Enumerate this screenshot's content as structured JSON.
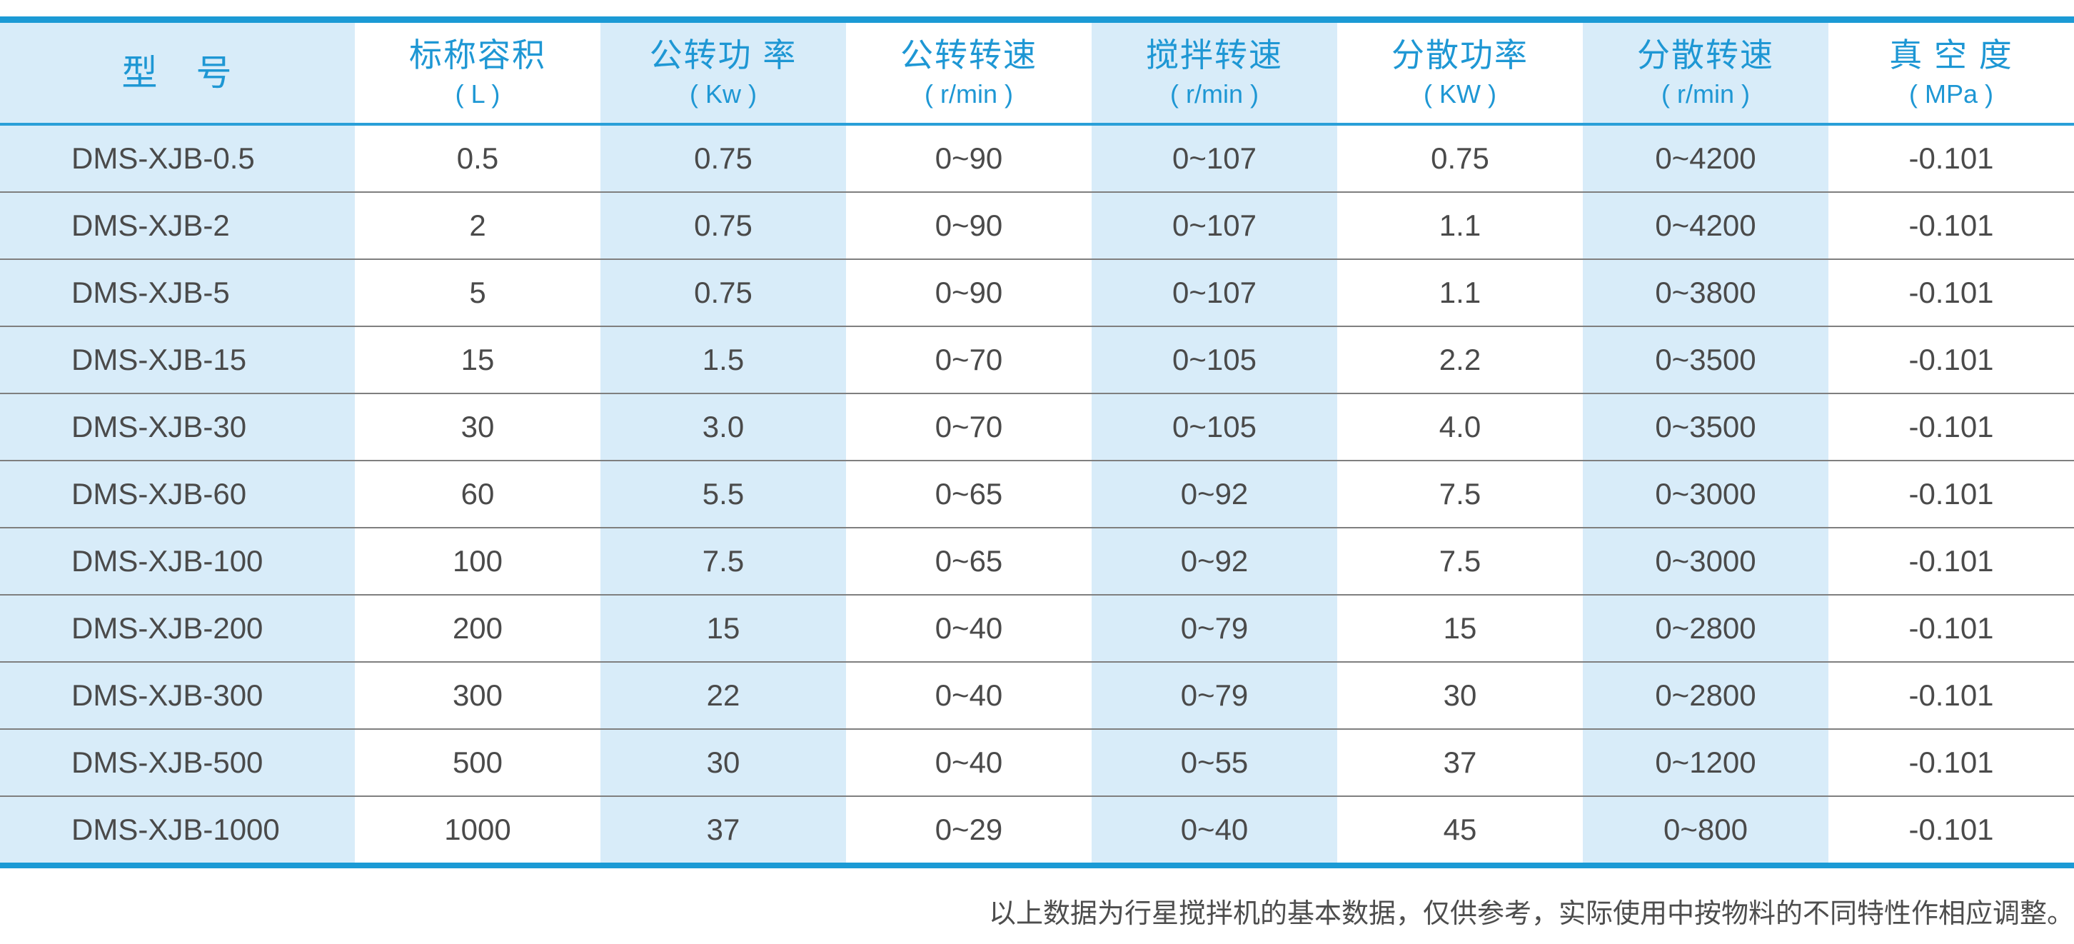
{
  "colors": {
    "accent_blue": "#1b9ad5",
    "header_separator_blue": "#2a9fd8",
    "header_text_blue": "#1e97d4",
    "band_light_blue": "#d8ecf9",
    "body_text_gray": "#4a4a4a",
    "row_separator_gray": "#7f7f7f",
    "footnote_gray": "#4d4d4d",
    "page_background": "#ffffff"
  },
  "table": {
    "columns": [
      {
        "title": "型　号",
        "unit": ""
      },
      {
        "title": "标称容积",
        "unit": "( L )"
      },
      {
        "title": "公转功 率",
        "unit": "( Kw )"
      },
      {
        "title": "公转转速",
        "unit": "( r/min )"
      },
      {
        "title": "搅拌转速",
        "unit": "( r/min )"
      },
      {
        "title": "分散功率",
        "unit": "( KW )"
      },
      {
        "title": "分散转速",
        "unit": "( r/min )"
      },
      {
        "title": "真 空 度",
        "unit": "( MPa )"
      }
    ],
    "rows": [
      [
        "DMS-XJB-0.5",
        "0.5",
        "0.75",
        "0~90",
        "0~107",
        "0.75",
        "0~4200",
        "-0.101"
      ],
      [
        "DMS-XJB-2",
        "2",
        "0.75",
        "0~90",
        "0~107",
        "1.1",
        "0~4200",
        "-0.101"
      ],
      [
        "DMS-XJB-5",
        "5",
        "0.75",
        "0~90",
        "0~107",
        "1.1",
        "0~3800",
        "-0.101"
      ],
      [
        "DMS-XJB-15",
        "15",
        "1.5",
        "0~70",
        "0~105",
        "2.2",
        "0~3500",
        "-0.101"
      ],
      [
        "DMS-XJB-30",
        "30",
        "3.0",
        "0~70",
        "0~105",
        "4.0",
        "0~3500",
        "-0.101"
      ],
      [
        "DMS-XJB-60",
        "60",
        "5.5",
        "0~65",
        "0~92",
        "7.5",
        "0~3000",
        "-0.101"
      ],
      [
        "DMS-XJB-100",
        "100",
        "7.5",
        "0~65",
        "0~92",
        "7.5",
        "0~3000",
        "-0.101"
      ],
      [
        "DMS-XJB-200",
        "200",
        "15",
        "0~40",
        "0~79",
        "15",
        "0~2800",
        "-0.101"
      ],
      [
        "DMS-XJB-300",
        "300",
        "22",
        "0~40",
        "0~79",
        "30",
        "0~2800",
        "-0.101"
      ],
      [
        "DMS-XJB-500",
        "500",
        "30",
        "0~40",
        "0~55",
        "37",
        "0~1200",
        "-0.101"
      ],
      [
        "DMS-XJB-1000",
        "1000",
        "37",
        "0~29",
        "0~40",
        "45",
        "0~800",
        "-0.101"
      ]
    ],
    "footnote": "以上数据为行星搅拌机的基本数据，仅供参考，实际使用中按物料的不同特性作相应调整。"
  }
}
